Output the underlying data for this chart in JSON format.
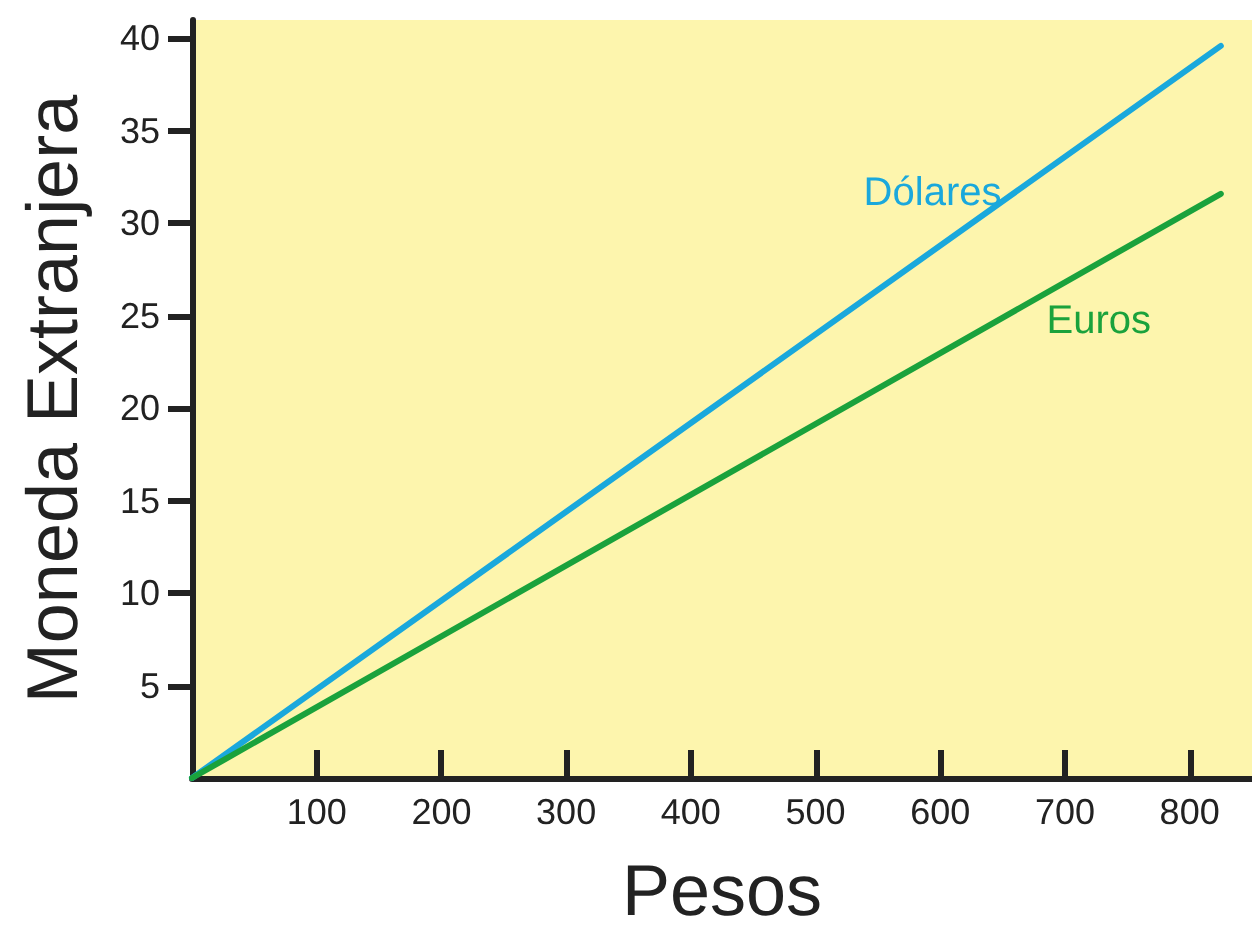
{
  "chart_data": {
    "type": "line",
    "xlabel": "Pesos",
    "ylabel": "Moneda Extranjera",
    "x": [
      0,
      825
    ],
    "series": [
      {
        "name": "Dólares",
        "color": "#1aa8dc",
        "values": [
          0,
          39.6
        ]
      },
      {
        "name": "Euros",
        "color": "#1aa23c",
        "values": [
          0,
          31.6
        ]
      }
    ],
    "xlim": [
      0,
      850
    ],
    "xticks": [
      100,
      200,
      300,
      400,
      500,
      600,
      700,
      800
    ],
    "ylim": [
      0,
      41
    ],
    "yticks": [
      5,
      10,
      15,
      20,
      25,
      30,
      35,
      40
    ],
    "grid": false,
    "legend": false,
    "marker": "none",
    "line_style": "solid"
  }
}
